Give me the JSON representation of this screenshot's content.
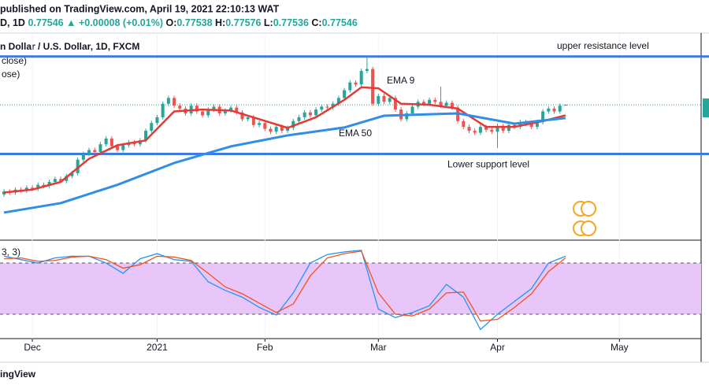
{
  "header": {
    "published": "published on TradingView.com, April 19, 2021 22:10:13 WAT",
    "symbol": "D, 1D",
    "price": "0.77546",
    "change": "▲ +0.00008 (+0.01%)",
    "ohlc_labels": [
      "O:",
      "H:",
      "L:",
      "C:"
    ],
    "ohlc_values": [
      "0.77538",
      "0.77576",
      "0.77536",
      "0.77546"
    ]
  },
  "footer": "ingView",
  "x_axis": {
    "xlim": [
      -0.7,
      122.9
    ],
    "xticks": [
      {
        "value": 5,
        "label": "Dec"
      },
      {
        "value": 27,
        "label": "2021"
      },
      {
        "value": 46,
        "label": "Feb"
      },
      {
        "value": 66,
        "label": "Mar"
      },
      {
        "value": 87,
        "label": "Apr"
      },
      {
        "value": 108.5,
        "label": "May"
      }
    ]
  },
  "chart_data": [
    {
      "type": "candlestick",
      "title": "n Dollar / U.S. Dollar, 1D, FXCM",
      "legend_lines": [
        "close)",
        "ose)"
      ],
      "ylim": [
        0.7053,
        0.8114
      ],
      "up_color": "#26a69a",
      "down_color": "#ef5350",
      "open": [
        0.729,
        0.7305,
        0.73,
        0.7315,
        0.731,
        0.7325,
        0.732,
        0.734,
        0.7335,
        0.7355,
        0.737,
        0.736,
        0.7385,
        0.74,
        0.747,
        0.75,
        0.752,
        0.751,
        0.755,
        0.758,
        0.754,
        0.752,
        0.7545,
        0.756,
        0.755,
        0.757,
        0.762,
        0.766,
        0.769,
        0.776,
        0.779,
        0.775,
        0.7735,
        0.771,
        0.775,
        0.772,
        0.77,
        0.773,
        0.7745,
        0.771,
        0.7725,
        0.774,
        0.7715,
        0.768,
        0.769,
        0.765,
        0.766,
        0.763,
        0.7615,
        0.764,
        0.762,
        0.7635,
        0.767,
        0.769,
        0.7715,
        0.77,
        0.773,
        0.7745,
        0.774,
        0.776,
        0.779,
        0.783,
        0.787,
        0.786,
        0.793,
        0.794,
        0.776,
        0.78,
        0.777,
        0.779,
        0.773,
        0.768,
        0.771,
        0.7745,
        0.777,
        0.776,
        0.778,
        0.777,
        0.775,
        0.7765,
        0.774,
        0.767,
        0.764,
        0.762,
        0.761,
        0.764,
        0.7625,
        0.7615,
        0.7645,
        0.762,
        0.765,
        0.764,
        0.7665,
        0.7655,
        0.764,
        0.7665,
        0.772,
        0.7735,
        0.772,
        0.77538
      ],
      "high": [
        0.7317,
        0.7317,
        0.7327,
        0.7327,
        0.7337,
        0.7337,
        0.7352,
        0.7352,
        0.7367,
        0.7382,
        0.7382,
        0.7397,
        0.7412,
        0.7482,
        0.7512,
        0.7532,
        0.7532,
        0.7562,
        0.7592,
        0.7592,
        0.7552,
        0.7557,
        0.7572,
        0.7572,
        0.7582,
        0.7632,
        0.7672,
        0.7702,
        0.7772,
        0.7802,
        0.7802,
        0.7762,
        0.7747,
        0.7762,
        0.7762,
        0.7732,
        0.7742,
        0.7757,
        0.7757,
        0.7737,
        0.7752,
        0.7752,
        0.7727,
        0.7702,
        0.7702,
        0.7672,
        0.7672,
        0.7642,
        0.7652,
        0.7652,
        0.7647,
        0.7682,
        0.7702,
        0.7727,
        0.7727,
        0.7742,
        0.7757,
        0.7757,
        0.7772,
        0.7802,
        0.7842,
        0.7882,
        0.7882,
        0.7942,
        0.8007,
        0.7952,
        0.7812,
        0.7812,
        0.7802,
        0.7802,
        0.7742,
        0.7722,
        0.7757,
        0.7782,
        0.7782,
        0.7792,
        0.7792,
        0.7849,
        0.7777,
        0.7777,
        0.7752,
        0.7682,
        0.7652,
        0.7632,
        0.7652,
        0.7652,
        0.7637,
        0.7657,
        0.7657,
        0.7662,
        0.7662,
        0.7677,
        0.7677,
        0.7667,
        0.7677,
        0.7732,
        0.7747,
        0.7747,
        0.7762,
        0.77576
      ],
      "low": [
        0.7278,
        0.7288,
        0.7288,
        0.7298,
        0.7298,
        0.7308,
        0.7308,
        0.7323,
        0.7323,
        0.7343,
        0.7348,
        0.7348,
        0.7373,
        0.7388,
        0.7458,
        0.7488,
        0.7498,
        0.7498,
        0.7538,
        0.7528,
        0.7508,
        0.7508,
        0.7533,
        0.7538,
        0.7538,
        0.7558,
        0.7608,
        0.7648,
        0.7678,
        0.7748,
        0.7738,
        0.7723,
        0.7698,
        0.7698,
        0.7708,
        0.7688,
        0.7688,
        0.7718,
        0.7698,
        0.7698,
        0.7713,
        0.7703,
        0.7668,
        0.7668,
        0.7638,
        0.7638,
        0.7618,
        0.7603,
        0.7603,
        0.7608,
        0.7608,
        0.7623,
        0.7658,
        0.7678,
        0.7688,
        0.7688,
        0.7718,
        0.7728,
        0.7728,
        0.7748,
        0.7778,
        0.7818,
        0.7848,
        0.7848,
        0.7918,
        0.7748,
        0.7748,
        0.7758,
        0.7758,
        0.7718,
        0.7668,
        0.7668,
        0.7698,
        0.7733,
        0.7748,
        0.7748,
        0.7758,
        0.7738,
        0.7738,
        0.7728,
        0.7658,
        0.7628,
        0.7608,
        0.7598,
        0.7598,
        0.7613,
        0.7603,
        0.7531,
        0.7608,
        0.7608,
        0.7628,
        0.7628,
        0.7643,
        0.7628,
        0.7628,
        0.7653,
        0.7708,
        0.7708,
        0.7708,
        0.77536
      ],
      "close": [
        0.7305,
        0.73,
        0.7315,
        0.731,
        0.7325,
        0.732,
        0.734,
        0.7335,
        0.7355,
        0.737,
        0.736,
        0.7385,
        0.74,
        0.747,
        0.75,
        0.752,
        0.751,
        0.755,
        0.758,
        0.754,
        0.752,
        0.7545,
        0.756,
        0.755,
        0.757,
        0.762,
        0.766,
        0.769,
        0.776,
        0.779,
        0.775,
        0.7735,
        0.771,
        0.775,
        0.772,
        0.77,
        0.773,
        0.7745,
        0.771,
        0.7725,
        0.774,
        0.7715,
        0.768,
        0.769,
        0.765,
        0.766,
        0.763,
        0.7615,
        0.764,
        0.762,
        0.7635,
        0.767,
        0.769,
        0.7715,
        0.77,
        0.773,
        0.7745,
        0.774,
        0.776,
        0.779,
        0.783,
        0.787,
        0.786,
        0.793,
        0.794,
        0.776,
        0.78,
        0.777,
        0.779,
        0.773,
        0.768,
        0.771,
        0.7745,
        0.777,
        0.776,
        0.778,
        0.777,
        0.775,
        0.7765,
        0.774,
        0.767,
        0.764,
        0.762,
        0.761,
        0.764,
        0.7625,
        0.7615,
        0.7645,
        0.762,
        0.765,
        0.764,
        0.7665,
        0.7655,
        0.764,
        0.7665,
        0.772,
        0.7735,
        0.772,
        0.775,
        0.77546
      ],
      "series": [
        {
          "name": "EMA 9",
          "color": "#e53935",
          "x": [
            0,
            5,
            10,
            15,
            20,
            25,
            30,
            35,
            40,
            45,
            50,
            55,
            60,
            63,
            66,
            70,
            75,
            80,
            85,
            90,
            95,
            99
          ],
          "values": [
            0.73,
            0.7315,
            0.7355,
            0.7475,
            0.7545,
            0.757,
            0.772,
            0.773,
            0.7725,
            0.768,
            0.7635,
            0.769,
            0.778,
            0.7845,
            0.784,
            0.776,
            0.7755,
            0.7735,
            0.764,
            0.764,
            0.767,
            0.77
          ]
        },
        {
          "name": "EMA 50",
          "color": "#2f8ee8",
          "x": [
            0,
            10,
            20,
            30,
            40,
            50,
            60,
            67,
            80,
            90,
            99
          ],
          "values": [
            0.7196,
            0.7245,
            0.734,
            0.7453,
            0.7539,
            0.7596,
            0.7637,
            0.7698,
            0.771,
            0.7657,
            0.7686
          ]
        }
      ],
      "levels": [
        {
          "label": "upper resistance level",
          "value": 0.8005
        },
        {
          "label": "Lower support level",
          "value": 0.75
        }
      ],
      "level_color": "#3d7be0"
    },
    {
      "type": "line",
      "title": "3, 3)",
      "ylim": [
        -8.6,
        106.8
      ],
      "bands": [
        20,
        80
      ],
      "band_color": "#e8c6fa",
      "series": [
        {
          "color": "#2196f3",
          "x": [
            0,
            3,
            6,
            9,
            12,
            15,
            18,
            21,
            24,
            27,
            30,
            33,
            36,
            39,
            42,
            45,
            48,
            51,
            54,
            57,
            60,
            63,
            66,
            69,
            72,
            75,
            78,
            81,
            84,
            87,
            90,
            93,
            96,
            99
          ],
          "values": [
            88,
            84,
            80,
            86,
            88,
            88,
            80,
            68,
            85,
            91,
            84,
            82,
            58,
            48,
            40,
            28,
            19,
            45,
            80,
            90,
            93,
            95,
            26,
            16,
            22,
            30,
            55,
            40,
            2,
            20,
            35,
            50,
            80,
            88
          ]
        },
        {
          "color": "#f4511e",
          "x": [
            0,
            3,
            6,
            9,
            12,
            15,
            18,
            21,
            24,
            27,
            30,
            33,
            36,
            39,
            42,
            45,
            48,
            51,
            54,
            57,
            60,
            63,
            66,
            69,
            72,
            75,
            78,
            81,
            84,
            87,
            90,
            93,
            96,
            99
          ],
          "values": [
            85,
            86,
            82,
            83,
            87,
            88,
            84,
            74,
            78,
            88,
            87,
            83,
            68,
            52,
            44,
            33,
            22,
            32,
            65,
            86,
            91,
            94,
            45,
            20,
            18,
            26,
            45,
            46,
            12,
            14,
            28,
            44,
            70,
            86
          ]
        }
      ]
    }
  ]
}
